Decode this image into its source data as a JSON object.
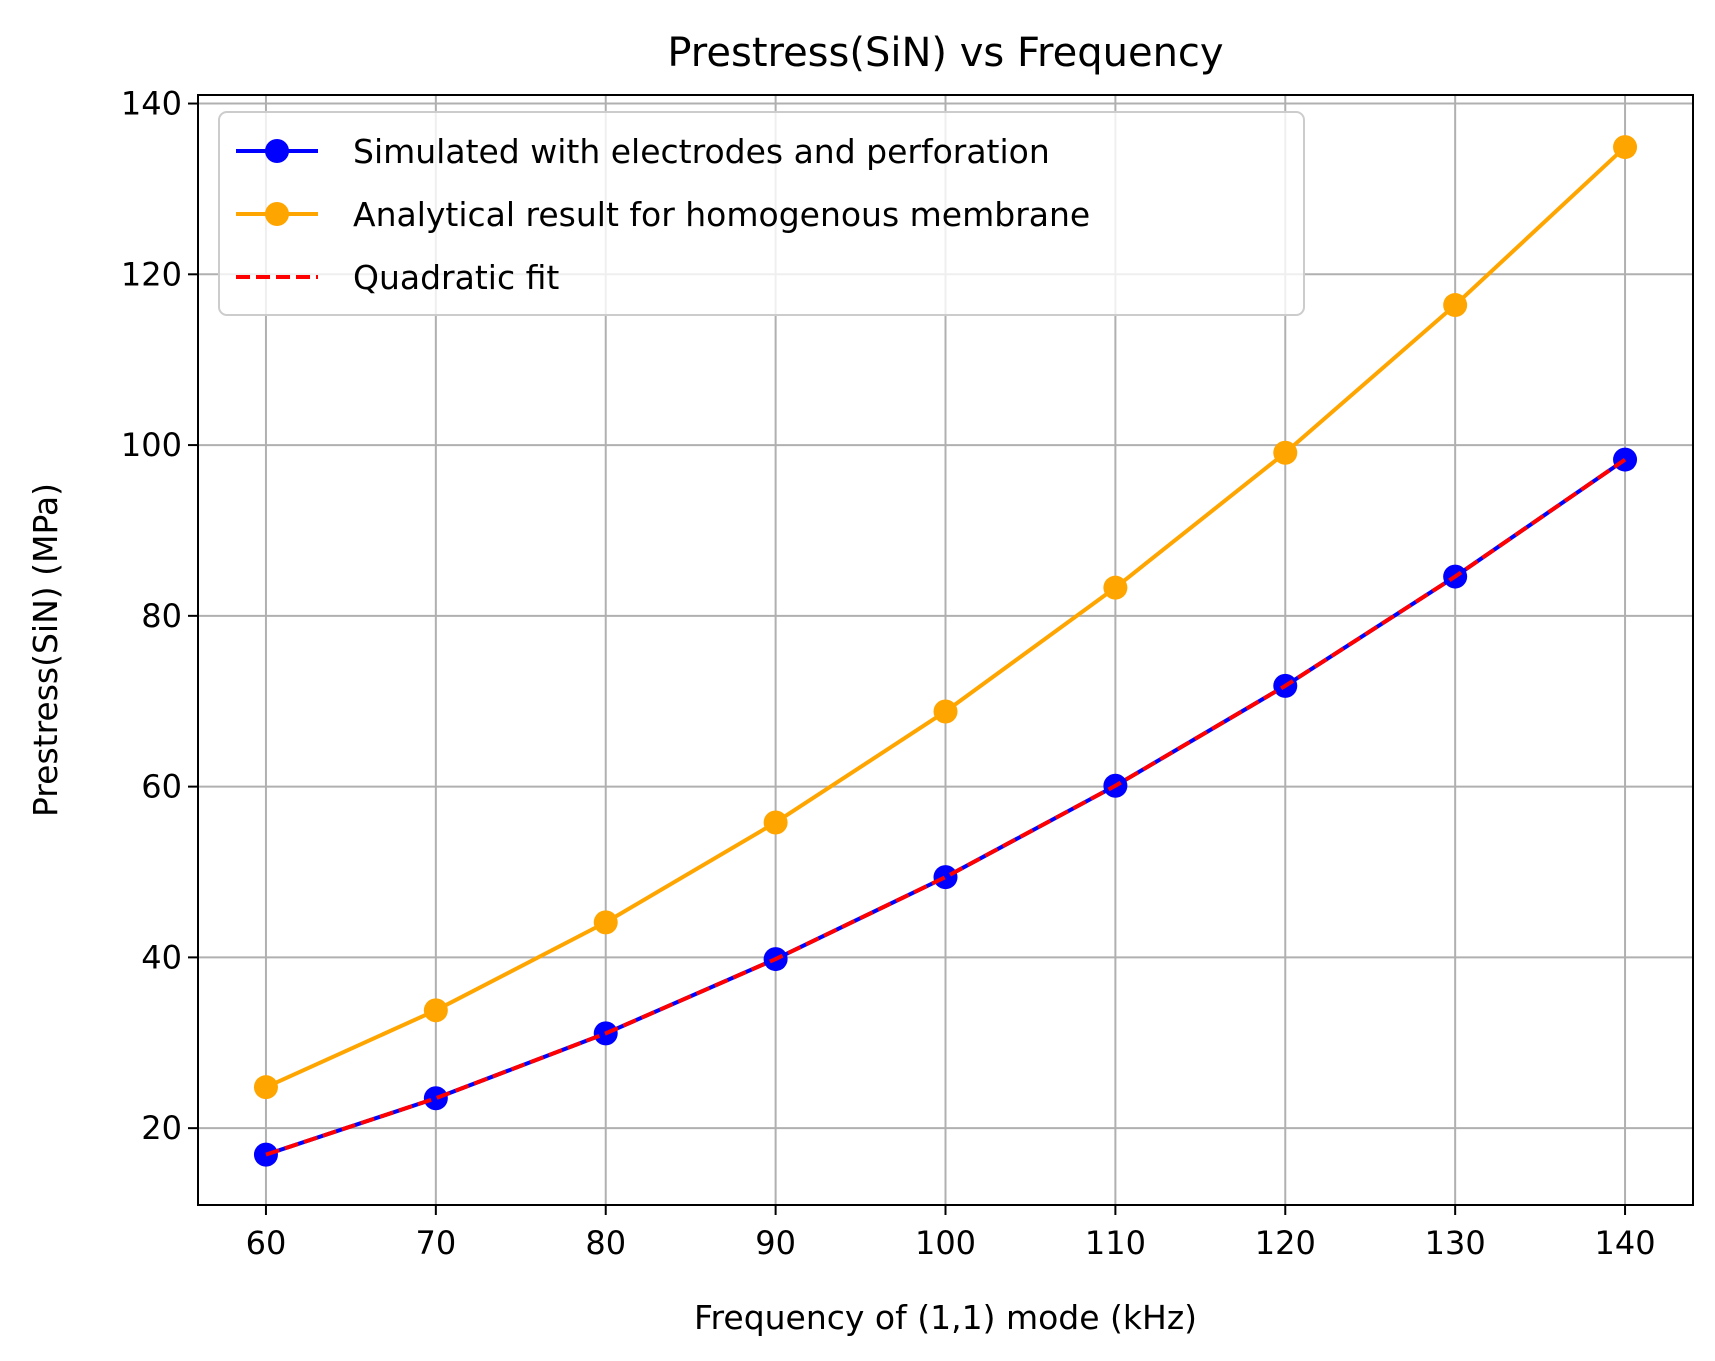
{
  "chart_data": {
    "type": "line",
    "title": "Prestress(SiN) vs Frequency",
    "xlabel": "Frequency of (1,1) mode (kHz)",
    "ylabel": "Prestress(SiN) (MPa)",
    "x": [
      60,
      70,
      80,
      90,
      100,
      110,
      120,
      130,
      140
    ],
    "xlim": [
      56,
      144
    ],
    "ylim": [
      11,
      141
    ],
    "xticks": [
      60,
      70,
      80,
      90,
      100,
      110,
      120,
      130,
      140
    ],
    "yticks": [
      20,
      40,
      60,
      80,
      100,
      120,
      140
    ],
    "grid": true,
    "legend_position": "top-left",
    "series": [
      {
        "name": "Simulated with electrodes and perforation",
        "color": "#0000ff",
        "style": "solid",
        "marker": "circle",
        "values": [
          16.9,
          23.5,
          31.1,
          39.8,
          49.4,
          60.1,
          71.8,
          84.6,
          98.3
        ]
      },
      {
        "name": "Analytical result for homogenous membrane",
        "color": "#ffa500",
        "style": "solid",
        "marker": "circle",
        "values": [
          24.8,
          33.8,
          44.1,
          55.8,
          68.8,
          83.3,
          99.1,
          116.4,
          134.9
        ]
      },
      {
        "name": "Quadratic fit",
        "color": "#ff0000",
        "style": "dashed",
        "marker": "none",
        "values": [
          16.9,
          23.5,
          31.1,
          39.8,
          49.4,
          60.1,
          71.8,
          84.6,
          98.3
        ]
      }
    ]
  }
}
